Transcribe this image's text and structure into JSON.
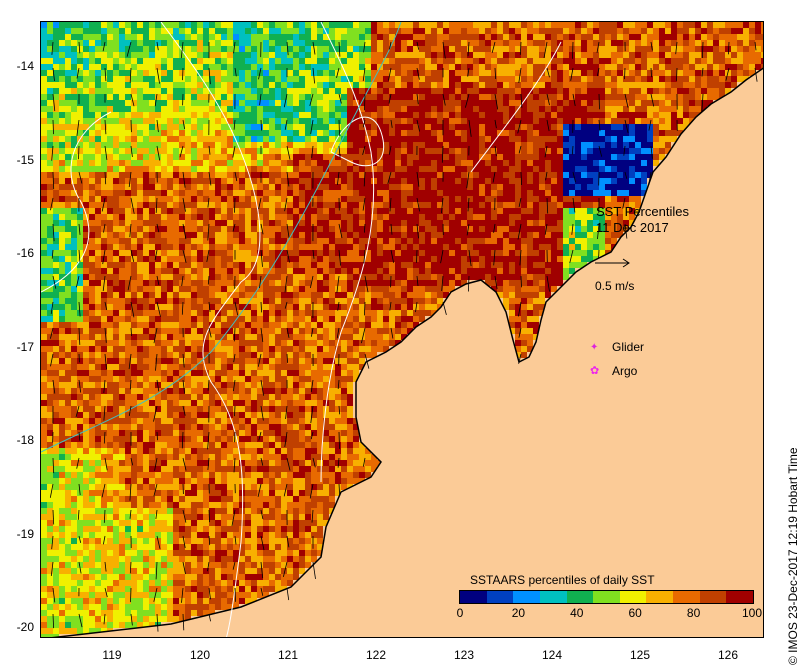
{
  "title": "SST Percentiles",
  "date": "11 Dec 2017",
  "vector_scale_label": "0.5 m/s",
  "legend": {
    "glider": "Glider",
    "argo": "Argo",
    "glider_color": "#dd22dd",
    "argo_color": "#ee22ee"
  },
  "colorbar": {
    "title": "SSTAARS percentiles of daily SST",
    "ticks": [
      "0",
      "20",
      "40",
      "60",
      "80",
      "100"
    ],
    "colors": [
      "#000080",
      "#0040c0",
      "#0090ff",
      "#00c0c0",
      "#10b050",
      "#80e020",
      "#f0f000",
      "#f8b000",
      "#e86a00",
      "#c04000",
      "#a00000"
    ]
  },
  "axes": {
    "lat_ticks": [
      "-14",
      "-15",
      "-16",
      "-17",
      "-18",
      "-19",
      "-20"
    ],
    "lon_ticks": [
      "119",
      "120",
      "121",
      "122",
      "123",
      "124",
      "125",
      "126"
    ]
  },
  "credit": "© IMOS 23-Dec-2017 12:19 Hobart Time",
  "colors": {
    "land": "#fbcb97",
    "contour": "#ffffff",
    "coast": "#000000",
    "isobath": "#40c0c0"
  }
}
